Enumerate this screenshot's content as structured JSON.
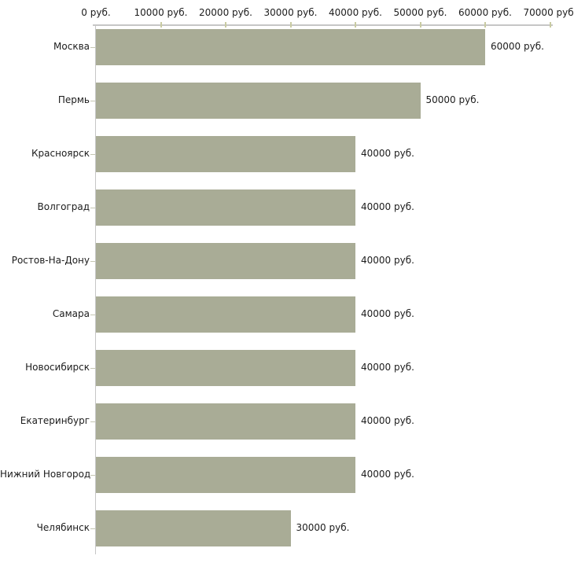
{
  "chart_data": {
    "type": "bar",
    "orientation": "horizontal",
    "title": "",
    "xlabel": "",
    "ylabel": "",
    "xlim": [
      0,
      70000
    ],
    "grid": false,
    "legend": false,
    "categories": [
      "Москва",
      "Пермь",
      "Красноярск",
      "Волгоград",
      "Ростов-На-Дону",
      "Самара",
      "Новосибирск",
      "Екатеринбург",
      "Нижний Новгород",
      "Челябинск"
    ],
    "values": [
      60000,
      50000,
      40000,
      40000,
      40000,
      40000,
      40000,
      40000,
      40000,
      30000
    ],
    "value_labels": [
      "60000 руб.",
      "50000 руб.",
      "40000 руб.",
      "40000 руб.",
      "40000 руб.",
      "40000 руб.",
      "40000 руб.",
      "40000 руб.",
      "40000 руб.",
      "30000 руб."
    ],
    "x_ticks": [
      0,
      10000,
      20000,
      30000,
      40000,
      50000,
      60000,
      70000
    ],
    "x_tick_labels": [
      "0 руб.",
      "10000 руб.",
      "20000 руб.",
      "30000 руб.",
      "40000 руб.",
      "50000 руб.",
      "60000 руб.",
      "70000 руб."
    ],
    "colors": {
      "bar": "#a9ac96",
      "axis_line": "#c6c6c6",
      "value_tick": "#c9cba2",
      "category_tick": "#c4c6b2",
      "text": "#1c1c1c",
      "background": "#ffffff"
    }
  }
}
